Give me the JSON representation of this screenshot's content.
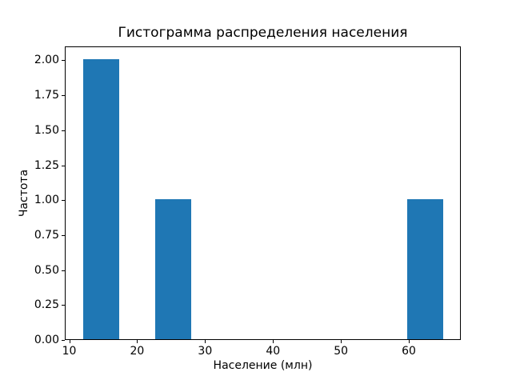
{
  "chart_data": {
    "type": "bar",
    "subtype": "histogram",
    "title": "Гистограмма распределения населения",
    "xlabel": "Население (млн)",
    "ylabel": "Частота",
    "xlim": [
      9.35,
      67.65
    ],
    "ylim": [
      0,
      2.1
    ],
    "x_ticks": [
      10,
      20,
      30,
      40,
      50,
      60
    ],
    "y_ticks": [
      "0.00",
      "0.25",
      "0.50",
      "0.75",
      "1.00",
      "1.25",
      "1.50",
      "1.75",
      "2.00"
    ],
    "bars": [
      {
        "x0": 12.0,
        "x1": 17.3,
        "frequency": 2
      },
      {
        "x0": 22.6,
        "x1": 27.9,
        "frequency": 1
      },
      {
        "x0": 59.7,
        "x1": 65.0,
        "frequency": 1
      }
    ],
    "bar_color": "#1f77b4",
    "axis_color": "#000000",
    "background_color": "#ffffff",
    "grid": false,
    "legend": false
  }
}
